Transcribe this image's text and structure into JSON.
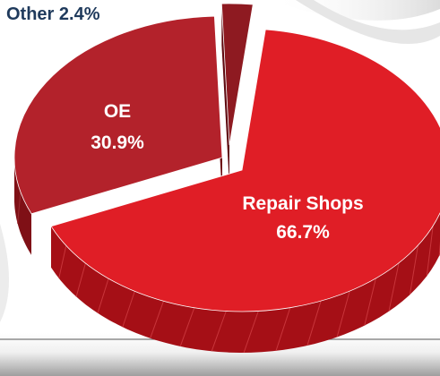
{
  "chart_data": {
    "type": "pie",
    "title": "",
    "categories": [
      "Repair Shops",
      "OE",
      "Other"
    ],
    "values": [
      66.7,
      30.9,
      2.4
    ],
    "value_labels": [
      "66.7%",
      "30.9%",
      "2.4%"
    ],
    "colors": {
      "Repair Shops": "#e01e26",
      "OE": "#b3222b",
      "Other": "#8e1a21"
    },
    "style": "3d-exploded",
    "legend": "none"
  },
  "labels": {
    "repair_name": "Repair Shops",
    "repair_value": "66.7%",
    "oe_name": "OE",
    "oe_value": "30.9%",
    "other_full": "Other 2.4%"
  }
}
